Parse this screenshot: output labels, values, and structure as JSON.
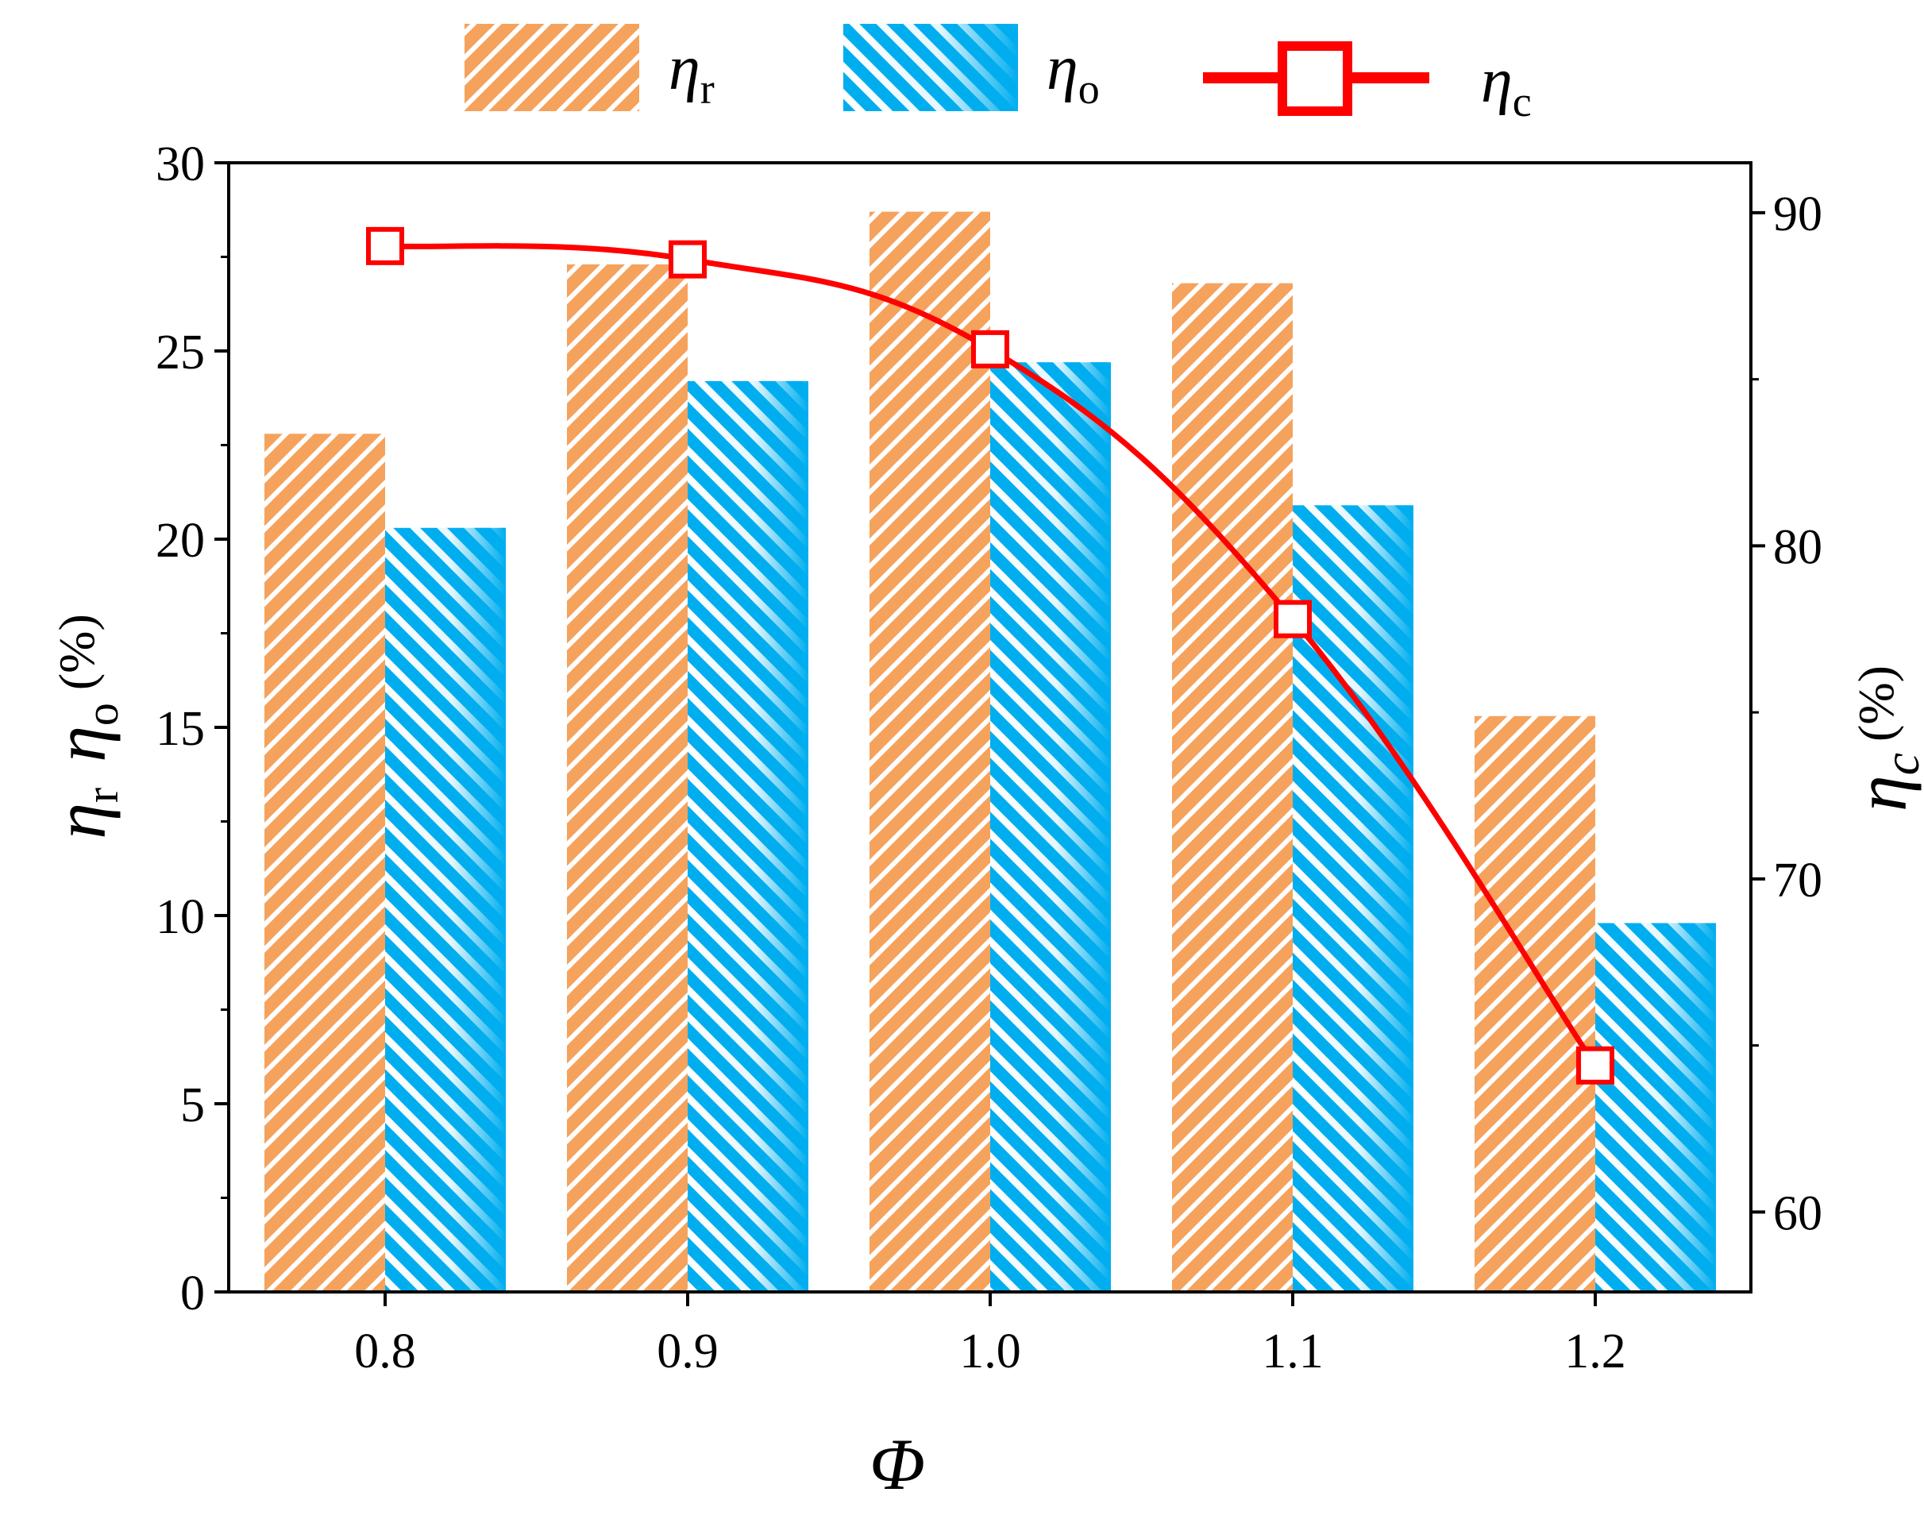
{
  "chart_data": {
    "type": "bar",
    "categories": [
      "0.8",
      "0.9",
      "1.0",
      "1.1",
      "1.2"
    ],
    "series": [
      {
        "name": "η_r",
        "symbol": "η",
        "subscript": "r",
        "axis": "left",
        "kind": "bar",
        "values": [
          22.8,
          27.3,
          28.7,
          26.8,
          15.3
        ]
      },
      {
        "name": "η_o",
        "symbol": "η",
        "subscript": "o",
        "axis": "left",
        "kind": "bar",
        "values": [
          20.3,
          24.2,
          24.7,
          20.9,
          9.8
        ]
      },
      {
        "name": "η_c",
        "symbol": "η",
        "subscript": "c",
        "axis": "right",
        "kind": "line",
        "values": [
          89.0,
          88.6,
          85.9,
          77.8,
          64.4
        ]
      }
    ],
    "xlabel": "Φ",
    "ylabel_left": {
      "symbol1": "η",
      "sub1": "r",
      "symbol2": "η",
      "sub2": "o",
      "unit": "(%)"
    },
    "ylabel_right": {
      "symbol": "η",
      "sub": "c",
      "unit": "(%)"
    },
    "y_left": {
      "lim": [
        0,
        30
      ],
      "ticks": [
        "0",
        "5",
        "10",
        "15",
        "20",
        "25",
        "30"
      ]
    },
    "y_right": {
      "lim": [
        57.6,
        91.5
      ],
      "ticks": [
        "60",
        "70",
        "80",
        "90"
      ]
    },
    "grid": false,
    "legend_position": "top",
    "colors": {
      "eta_r": "#f5a25d",
      "eta_o": "#00aeef",
      "eta_c": "#ff0000"
    }
  }
}
